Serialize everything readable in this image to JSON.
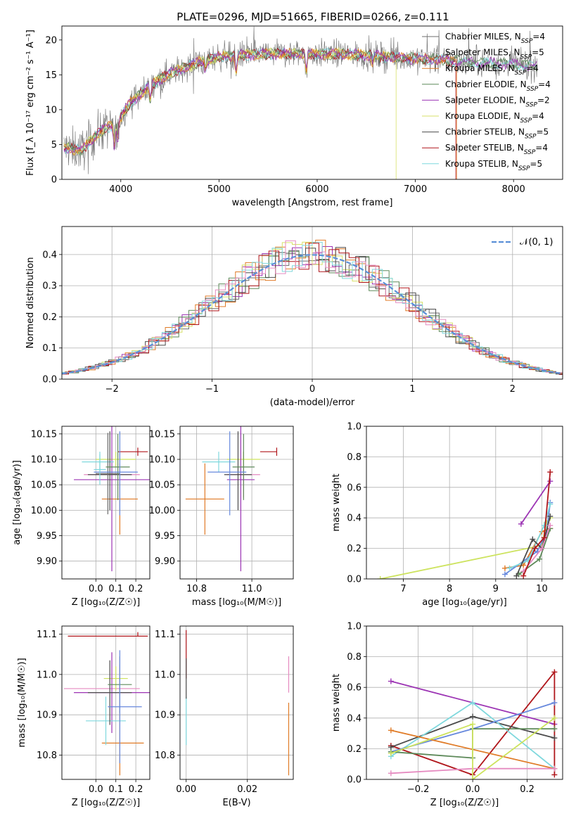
{
  "title": "PLATE=0296, MJD=51665, FIBERID=0266, z=0.111",
  "colors": {
    "chabrier_miles": "#6c6c6c",
    "salpeter_miles": "#d8d8d8",
    "kroupa_miles": "#e07b27",
    "chabrier_elodie": "#5e8a5a",
    "salpeter_elodie": "#9c34b4",
    "kroupa_elodie": "#d7e169",
    "chabrier_stelib": "#4c4c4c",
    "salpeter_stelib": "#b0161b",
    "kroupa_stelib": "#7fd8dd",
    "pink": "#e58ac0",
    "blue": "#6688dd",
    "yellowgreen": "#cde35e",
    "normal": "#5a8fd6"
  },
  "chart_data": [
    {
      "id": "spectrum",
      "type": "line",
      "xlabel": "wavelength [Angstrom, rest frame]",
      "ylabel": "Flux [f_λ 10⁻¹⁷ erg cm⁻² s⁻¹ A⁻¹]",
      "xlim": [
        3400,
        8500
      ],
      "ylim": [
        0,
        22
      ],
      "xticks": [
        "4000",
        "5000",
        "6000",
        "7000",
        "8000"
      ],
      "yticks": [
        "0",
        "5",
        "10",
        "15",
        "20"
      ],
      "grid": false,
      "legend_position": "right",
      "legend": [
        {
          "name": "Chabrier MILES, N",
          "sub": "SSP",
          "tail": "=4",
          "color_key": "chabrier_miles"
        },
        {
          "name": "Salpeter MILES, N",
          "sub": "SSP",
          "tail": "=5",
          "color_key": "salpeter_miles"
        },
        {
          "name": "Kroupa MILES, N",
          "sub": "SSP",
          "tail": "=4",
          "color_key": "kroupa_miles"
        },
        {
          "name": "Chabrier ELODIE, N",
          "sub": "SSP",
          "tail": "=4",
          "color_key": "chabrier_elodie"
        },
        {
          "name": "Salpeter ELODIE, N",
          "sub": "SSP",
          "tail": "=2",
          "color_key": "salpeter_elodie"
        },
        {
          "name": "Kroupa ELODIE, N",
          "sub": "SSP",
          "tail": "=4",
          "color_key": "kroupa_elodie"
        },
        {
          "name": "Chabrier STELIB, N",
          "sub": "SSP",
          "tail": "=5",
          "color_key": "chabrier_stelib"
        },
        {
          "name": "Salpeter STELIB, N",
          "sub": "SSP",
          "tail": "=4",
          "color_key": "salpeter_stelib"
        },
        {
          "name": "Kroupa STELIB, N",
          "sub": "SSP",
          "tail": "=5",
          "color_key": "kroupa_stelib"
        }
      ],
      "continuum": [
        [
          3420,
          4.5
        ],
        [
          3600,
          4.2
        ],
        [
          3800,
          7.0
        ],
        [
          3950,
          8.0
        ],
        [
          4100,
          11.0
        ],
        [
          4300,
          13.5
        ],
        [
          4500,
          15.2
        ],
        [
          4800,
          16.8
        ],
        [
          5000,
          17.6
        ],
        [
          5300,
          17.9
        ],
        [
          5600,
          18.0
        ],
        [
          5900,
          18.0
        ],
        [
          6200,
          18.0
        ],
        [
          6500,
          17.8
        ],
        [
          6800,
          17.5
        ],
        [
          7200,
          17.2
        ],
        [
          7600,
          16.8
        ],
        [
          8000,
          16.5
        ],
        [
          8240,
          16.2
        ]
      ],
      "noise_rms": 1.0,
      "dips": [
        [
          3934,
          3.0
        ],
        [
          3969,
          2.5
        ],
        [
          4300,
          2.0
        ],
        [
          4861,
          1.5
        ],
        [
          5175,
          2.5
        ],
        [
          5890,
          2.5
        ],
        [
          6563,
          1.0
        ]
      ],
      "model_cutoffs": [
        {
          "color_key": "kroupa_elodie",
          "x": 6800
        },
        {
          "color_key": "salpeter_stelib",
          "x": 7410
        },
        {
          "color_key": "kroupa_miles",
          "x": 7420
        }
      ]
    },
    {
      "id": "residual_hist",
      "type": "histogram",
      "xlabel": "(data-model)/error",
      "ylabel": "Normed distribution",
      "xlim": [
        -2.5,
        2.5
      ],
      "ylim": [
        0,
        0.49
      ],
      "xticks": [
        "−2",
        "−1",
        "0",
        "1",
        "2"
      ],
      "yticks": [
        "0.0",
        "0.1",
        "0.2",
        "0.3",
        "0.4"
      ],
      "grid": true,
      "bin_width": 0.1,
      "n_series": 9,
      "legend": [
        {
          "name": "𝒩(0, 1)",
          "color_key": "normal"
        }
      ],
      "legend_position": "top-right"
    },
    {
      "id": "age_vs_Z",
      "type": "errorbar",
      "xlabel": "Z [log₁₀(Z/Z☉)]",
      "ylabel": "age  [log₁₀(age/yr)]",
      "xlim": [
        -0.17,
        0.27
      ],
      "ylim": [
        9.865,
        10.165
      ],
      "xticks": [
        "0.0",
        "0.1",
        "0.2"
      ],
      "yticks": [
        "9.90",
        "9.95",
        "10.00",
        "10.05",
        "10.10",
        "10.15"
      ],
      "grid": true,
      "points": [
        {
          "x": 0.21,
          "xerr": [
            0.1,
            0.05
          ],
          "y": 10.115,
          "yerr": [
            0.008,
            0.008
          ],
          "color_key": "salpeter_stelib"
        },
        {
          "x": 0.12,
          "xerr": [
            0.18,
            0.1
          ],
          "y": 10.07,
          "yerr": [
            0.045,
            0.045
          ],
          "color_key": "pink"
        },
        {
          "x": 0.12,
          "xerr": [
            0.09,
            0.09
          ],
          "y": 10.022,
          "yerr": [
            0.07,
            0.07
          ],
          "color_key": "kroupa_miles"
        },
        {
          "x": 0.1,
          "xerr": [
            0.1,
            0.1
          ],
          "y": 10.1,
          "yerr": [
            0.015,
            0.015
          ],
          "color_key": "yellowgreen"
        },
        {
          "x": 0.08,
          "xerr": [
            0.19,
            0.19
          ],
          "y": 10.06,
          "yerr": [
            0.18,
            0.18
          ],
          "color_key": "salpeter_elodie"
        },
        {
          "x": 0.02,
          "xerr": [
            0.09,
            0.07
          ],
          "y": 10.095,
          "yerr": [
            0.02,
            0.02
          ],
          "color_key": "kroupa_stelib"
        },
        {
          "x": 0.07,
          "xerr": [
            0.11,
            0.11
          ],
          "y": 10.07,
          "yerr": [
            0.07,
            0.085
          ],
          "color_key": "chabrier_stelib"
        },
        {
          "x": 0.06,
          "xerr": [
            0.06,
            0.06
          ],
          "y": 10.072,
          "yerr": [
            0.08,
            0.08
          ],
          "color_key": "chabrier_miles"
        },
        {
          "x": 0.11,
          "xerr": [
            0.06,
            0.06
          ],
          "y": 10.085,
          "yerr": [
            0.065,
            0.065
          ],
          "color_key": "chabrier_elodie"
        },
        {
          "x": 0.12,
          "xerr": [
            0.13,
            0.09
          ],
          "y": 10.075,
          "yerr": [
            0.085,
            0.08
          ],
          "color_key": "blue"
        },
        {
          "x": 0.02,
          "xerr": [
            0.03,
            0.03
          ],
          "y": 10.08,
          "yerr": [
            0.03,
            0.03
          ],
          "color_key": "kroupa_stelib"
        }
      ]
    },
    {
      "id": "age_vs_mass",
      "type": "errorbar",
      "xlabel": "mass [log₁₀(M/M☉)]",
      "xlim": [
        10.74,
        11.15
      ],
      "ylim": [
        9.865,
        10.165
      ],
      "xticks": [
        "10.8",
        "11.0"
      ],
      "yticks": [
        "9.90",
        "9.95",
        "10.00",
        "10.05",
        "10.10",
        "10.15"
      ],
      "grid": true,
      "points": [
        {
          "x": 11.09,
          "xerr": [
            0.06,
            0.0
          ],
          "y": 10.115,
          "yerr": [
            0.008,
            0.008
          ],
          "color_key": "salpeter_stelib"
        },
        {
          "x": 10.97,
          "xerr": [
            0.06,
            0.06
          ],
          "y": 10.07,
          "yerr": [
            0.045,
            0.045
          ],
          "color_key": "pink"
        },
        {
          "x": 10.83,
          "xerr": [
            0.07,
            0.07
          ],
          "y": 10.022,
          "yerr": [
            0.07,
            0.07
          ],
          "color_key": "kroupa_miles"
        },
        {
          "x": 10.97,
          "xerr": [
            0.06,
            0.06
          ],
          "y": 10.1,
          "yerr": [
            0.015,
            0.015
          ],
          "color_key": "yellowgreen"
        },
        {
          "x": 10.96,
          "xerr": [
            0.05,
            0.05
          ],
          "y": 10.06,
          "yerr": [
            0.18,
            0.18
          ],
          "color_key": "salpeter_elodie"
        },
        {
          "x": 10.88,
          "xerr": [
            0.06,
            0.06
          ],
          "y": 10.095,
          "yerr": [
            0.02,
            0.02
          ],
          "color_key": "kroupa_stelib"
        },
        {
          "x": 10.95,
          "xerr": [
            0.05,
            0.05
          ],
          "y": 10.07,
          "yerr": [
            0.07,
            0.085
          ],
          "color_key": "chabrier_stelib"
        },
        {
          "x": 10.97,
          "xerr": [
            0.04,
            0.04
          ],
          "y": 10.085,
          "yerr": [
            0.065,
            0.065
          ],
          "color_key": "chabrier_elodie"
        },
        {
          "x": 10.92,
          "xerr": [
            0.08,
            0.06
          ],
          "y": 10.075,
          "yerr": [
            0.085,
            0.08
          ],
          "color_key": "blue"
        }
      ]
    },
    {
      "id": "weight_vs_age",
      "type": "line",
      "xlabel": "age  [log₁₀(age/yr)]",
      "ylabel": "mass weight",
      "xlim": [
        6.2,
        10.45
      ],
      "ylim": [
        0,
        1.0
      ],
      "xticks": [
        "7",
        "8",
        "9",
        "10"
      ],
      "yticks": [
        "0.0",
        "0.2",
        "0.4",
        "0.6",
        "0.8",
        "1.0"
      ],
      "grid": true,
      "series": [
        {
          "color_key": "yellowgreen",
          "x": [
            6.5,
            10.0,
            10.1,
            10.18
          ],
          "y": [
            0.0,
            0.22,
            0.37,
            0.4
          ]
        },
        {
          "color_key": "salpeter_elodie",
          "x": [
            9.55,
            10.18
          ],
          "y": [
            0.36,
            0.64
          ]
        },
        {
          "color_key": "kroupa_miles",
          "x": [
            9.2,
            9.6,
            10.0,
            10.18
          ],
          "y": [
            0.07,
            0.09,
            0.31,
            0.33
          ]
        },
        {
          "color_key": "blue",
          "x": [
            9.2,
            9.9,
            10.1,
            10.18
          ],
          "y": [
            0.03,
            0.18,
            0.3,
            0.5
          ]
        },
        {
          "color_key": "kroupa_stelib",
          "x": [
            9.3,
            9.7,
            10.05,
            10.18
          ],
          "y": [
            0.07,
            0.12,
            0.35,
            0.49
          ]
        },
        {
          "color_key": "chabrier_elodie",
          "x": [
            9.5,
            9.95,
            10.18
          ],
          "y": [
            0.03,
            0.13,
            0.33
          ]
        },
        {
          "color_key": "chabrier_stelib",
          "x": [
            9.45,
            9.8,
            10.0,
            10.18
          ],
          "y": [
            0.02,
            0.26,
            0.2,
            0.41
          ]
        },
        {
          "color_key": "pink",
          "x": [
            9.6,
            10.0,
            10.18
          ],
          "y": [
            0.05,
            0.2,
            0.35
          ]
        },
        {
          "color_key": "salpeter_stelib",
          "x": [
            9.6,
            9.85,
            10.05,
            10.18
          ],
          "y": [
            0.02,
            0.2,
            0.27,
            0.7
          ]
        }
      ]
    },
    {
      "id": "mass_vs_Z",
      "type": "errorbar",
      "xlabel": "Z [log₁₀(Z/Z☉)]",
      "ylabel": "mass [log₁₀(M/M☉)]",
      "xlim": [
        -0.17,
        0.27
      ],
      "ylim": [
        10.74,
        11.12
      ],
      "xticks": [
        "0.0",
        "0.1",
        "0.2"
      ],
      "yticks": [
        "10.8",
        "10.9",
        "11.0",
        "11.1"
      ],
      "grid": true,
      "points": [
        {
          "x": 0.21,
          "xerr": [
            0.35,
            0.05
          ],
          "y": 11.095,
          "yerr": [
            0.0,
            0.01
          ],
          "color_key": "salpeter_stelib"
        },
        {
          "x": 0.12,
          "xerr": [
            0.28,
            0.1
          ],
          "y": 10.965,
          "yerr": [
            0.06,
            0.06
          ],
          "color_key": "pink"
        },
        {
          "x": 0.12,
          "xerr": [
            0.09,
            0.12
          ],
          "y": 10.83,
          "yerr": [
            0.08,
            0.08
          ],
          "color_key": "kroupa_miles"
        },
        {
          "x": 0.1,
          "xerr": [
            0.06,
            0.06
          ],
          "y": 10.99,
          "yerr": [
            0.03,
            0.03
          ],
          "color_key": "yellowgreen"
        },
        {
          "x": 0.08,
          "xerr": [
            0.19,
            0.19
          ],
          "y": 10.955,
          "yerr": [
            0.1,
            0.1
          ],
          "color_key": "salpeter_elodie"
        },
        {
          "x": 0.05,
          "xerr": [
            0.1,
            0.1
          ],
          "y": 10.885,
          "yerr": [
            0.06,
            0.06
          ],
          "color_key": "kroupa_stelib"
        },
        {
          "x": 0.07,
          "xerr": [
            0.11,
            0.11
          ],
          "y": 10.955,
          "yerr": [
            0.08,
            0.08
          ],
          "color_key": "chabrier_stelib"
        },
        {
          "x": 0.12,
          "xerr": [
            0.06,
            0.06
          ],
          "y": 10.975,
          "yerr": [
            0.07,
            0.07
          ],
          "color_key": "chabrier_elodie"
        },
        {
          "x": 0.12,
          "xerr": [
            0.06,
            0.11
          ],
          "y": 10.92,
          "yerr": [
            0.14,
            0.14
          ],
          "color_key": "blue"
        }
      ]
    },
    {
      "id": "mass_vs_ebv",
      "type": "errorbar",
      "xlabel": "E(B-V)",
      "xlim": [
        -0.002,
        0.035
      ],
      "ylim": [
        10.74,
        11.12
      ],
      "xticks": [
        "0.00",
        "0.02"
      ],
      "yticks": [
        "10.8",
        "10.9",
        "11.0",
        "11.1"
      ],
      "grid": true,
      "points": [
        {
          "x": 0.0,
          "xerr": [
            0,
            0
          ],
          "y": 11.05,
          "yerr": [
            0.06,
            0.06
          ],
          "color_key": "salpeter_stelib"
        },
        {
          "x": 0.0,
          "xerr": [
            0,
            0
          ],
          "y": 10.885,
          "yerr": [
            0.06,
            0.06
          ],
          "color_key": "kroupa_stelib"
        },
        {
          "x": 0.0,
          "xerr": [
            0,
            0
          ],
          "y": 10.99,
          "yerr": [
            0.05,
            0.05
          ],
          "color_key": "chabrier_stelib"
        },
        {
          "x": 0.0335,
          "xerr": [
            0,
            0
          ],
          "y": 11.0,
          "yerr": [
            0.045,
            0.045
          ],
          "color_key": "pink"
        },
        {
          "x": 0.0335,
          "xerr": [
            0,
            0
          ],
          "y": 10.84,
          "yerr": [
            0.09,
            0.09
          ],
          "color_key": "kroupa_miles"
        }
      ]
    },
    {
      "id": "weight_vs_Z",
      "type": "line",
      "xlabel": "Z [log₁₀(Z/Z☉)]",
      "ylabel": "mass weight",
      "xlim": [
        -0.39,
        0.33
      ],
      "ylim": [
        0,
        1.0
      ],
      "xticks": [
        "−0.2",
        "0.0",
        "0.2"
      ],
      "yticks": [
        "0.0",
        "0.2",
        "0.4",
        "0.6",
        "0.8",
        "1.0"
      ],
      "grid": true,
      "series": [
        {
          "color_key": "salpeter_elodie",
          "x": [
            -0.3,
            0.3
          ],
          "y": [
            0.64,
            0.36
          ]
        },
        {
          "color_key": "salpeter_stelib",
          "x": [
            -0.3,
            0.0,
            0.3,
            0.3
          ],
          "y": [
            0.22,
            0.03,
            0.7,
            0.03
          ]
        },
        {
          "color_key": "chabrier_stelib",
          "x": [
            -0.3,
            0.0,
            0.3
          ],
          "y": [
            0.21,
            0.41,
            0.27
          ]
        },
        {
          "color_key": "kroupa_stelib",
          "x": [
            -0.3,
            0.0,
            0.3
          ],
          "y": [
            0.15,
            0.5,
            0.07
          ]
        },
        {
          "color_key": "blue",
          "x": [
            -0.3,
            0.0,
            0.3
          ],
          "y": [
            0.18,
            0.33,
            0.5
          ]
        },
        {
          "color_key": "kroupa_miles",
          "x": [
            -0.3,
            0.3
          ],
          "y": [
            0.32,
            0.07
          ]
        },
        {
          "color_key": "pink",
          "x": [
            -0.3,
            0.0,
            0.3
          ],
          "y": [
            0.04,
            0.07,
            0.07
          ]
        },
        {
          "color_key": "chabrier_elodie",
          "x": [
            -0.3,
            0.0,
            0.0,
            0.3
          ],
          "y": [
            0.18,
            0.14,
            0.33,
            0.33
          ]
        },
        {
          "color_key": "yellowgreen",
          "x": [
            -0.3,
            0.0,
            0.0,
            0.3
          ],
          "y": [
            0.17,
            0.36,
            0.0,
            0.4
          ]
        }
      ]
    }
  ]
}
